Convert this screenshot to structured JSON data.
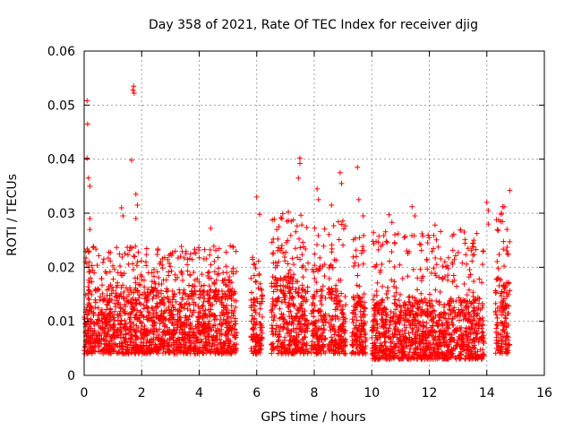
{
  "chart_data": {
    "type": "scatter",
    "title": "Day 358 of 2021, Rate Of TEC Index for receiver djig",
    "xlabel": "GPS time / hours",
    "ylabel": "ROTI / TECUs",
    "xlim": [
      0,
      16
    ],
    "ylim": [
      0,
      0.06
    ],
    "xticks": [
      0,
      2,
      4,
      6,
      8,
      10,
      12,
      14,
      16
    ],
    "xtick_labels": [
      "0",
      "2",
      "4",
      "6",
      "8",
      "10",
      "12",
      "14",
      "16"
    ],
    "yticks": [
      0,
      0.01,
      0.02,
      0.03,
      0.04,
      0.05,
      0.06
    ],
    "ytick_labels": [
      "0",
      "0.01",
      "0.02",
      "0.03",
      "0.04",
      "0.05",
      "0.06"
    ],
    "grid": true,
    "marker": "+",
    "color": "#ff0000",
    "dense_bands": [
      {
        "x_range": [
          0.0,
          5.3
        ],
        "y_typical": [
          0.004,
          0.016
        ],
        "y_max": 0.024
      },
      {
        "x_range": [
          5.8,
          6.2
        ],
        "y_typical": [
          0.004,
          0.015
        ],
        "y_max": 0.022
      },
      {
        "x_range": [
          6.5,
          7.8
        ],
        "y_typical": [
          0.004,
          0.018
        ],
        "y_max": 0.03
      },
      {
        "x_range": [
          7.9,
          8.4
        ],
        "y_typical": [
          0.004,
          0.016
        ],
        "y_max": 0.028
      },
      {
        "x_range": [
          8.5,
          9.1
        ],
        "y_typical": [
          0.004,
          0.016
        ],
        "y_max": 0.029
      },
      {
        "x_range": [
          9.3,
          9.8
        ],
        "y_typical": [
          0.004,
          0.015
        ],
        "y_max": 0.027
      },
      {
        "x_range": [
          10.0,
          13.9
        ],
        "y_typical": [
          0.003,
          0.014
        ],
        "y_max": 0.027
      },
      {
        "x_range": [
          14.3,
          14.8
        ],
        "y_typical": [
          0.004,
          0.018
        ],
        "y_max": 0.031
      }
    ],
    "notable_points": [
      {
        "x": 0.1,
        "y": 0.0508
      },
      {
        "x": 0.12,
        "y": 0.0465
      },
      {
        "x": 0.1,
        "y": 0.0402
      },
      {
        "x": 0.15,
        "y": 0.0365
      },
      {
        "x": 0.2,
        "y": 0.035
      },
      {
        "x": 0.2,
        "y": 0.029
      },
      {
        "x": 0.2,
        "y": 0.027
      },
      {
        "x": 0.05,
        "y": 0.021
      },
      {
        "x": 1.3,
        "y": 0.031
      },
      {
        "x": 1.35,
        "y": 0.0295
      },
      {
        "x": 1.65,
        "y": 0.0398
      },
      {
        "x": 1.72,
        "y": 0.0535
      },
      {
        "x": 1.7,
        "y": 0.0528
      },
      {
        "x": 1.74,
        "y": 0.0522
      },
      {
        "x": 1.8,
        "y": 0.0335
      },
      {
        "x": 1.85,
        "y": 0.0315
      },
      {
        "x": 1.8,
        "y": 0.029
      },
      {
        "x": 4.4,
        "y": 0.0272
      },
      {
        "x": 6.0,
        "y": 0.033
      },
      {
        "x": 6.1,
        "y": 0.0298
      },
      {
        "x": 7.1,
        "y": 0.0302
      },
      {
        "x": 7.45,
        "y": 0.0365
      },
      {
        "x": 7.5,
        "y": 0.0402
      },
      {
        "x": 7.5,
        "y": 0.0392
      },
      {
        "x": 7.2,
        "y": 0.0285
      },
      {
        "x": 8.1,
        "y": 0.0345
      },
      {
        "x": 8.15,
        "y": 0.0325
      },
      {
        "x": 8.6,
        "y": 0.0315
      },
      {
        "x": 8.9,
        "y": 0.0375
      },
      {
        "x": 8.95,
        "y": 0.0355
      },
      {
        "x": 9.5,
        "y": 0.0385
      },
      {
        "x": 9.55,
        "y": 0.0325
      },
      {
        "x": 9.7,
        "y": 0.0295
      },
      {
        "x": 10.6,
        "y": 0.0297
      },
      {
        "x": 10.7,
        "y": 0.0283
      },
      {
        "x": 11.4,
        "y": 0.0312
      },
      {
        "x": 11.5,
        "y": 0.0295
      },
      {
        "x": 12.2,
        "y": 0.0278
      },
      {
        "x": 12.8,
        "y": 0.0258
      },
      {
        "x": 14.0,
        "y": 0.032
      },
      {
        "x": 14.05,
        "y": 0.0305
      },
      {
        "x": 14.05,
        "y": 0.028
      },
      {
        "x": 14.5,
        "y": 0.0298
      },
      {
        "x": 14.55,
        "y": 0.0312
      },
      {
        "x": 14.6,
        "y": 0.0312
      },
      {
        "x": 14.8,
        "y": 0.0342
      },
      {
        "x": 14.7,
        "y": 0.027
      }
    ]
  }
}
